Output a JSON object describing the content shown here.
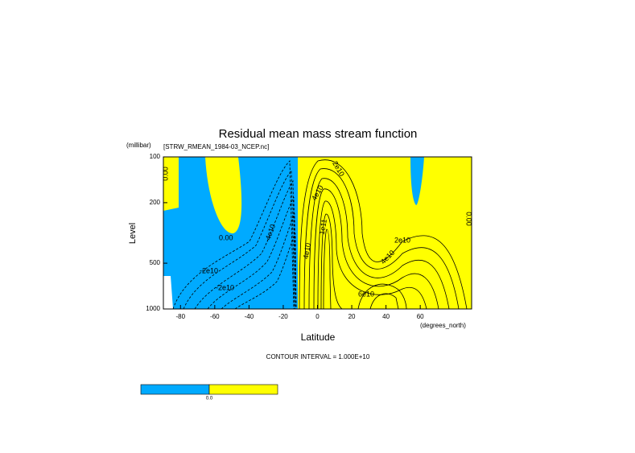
{
  "chart_data": {
    "type": "contour",
    "title": "Residual mean mass stream function",
    "subtitle": "[STRW_RMEAN_1984-03_NCEP.nc]",
    "xlabel": "Latitude",
    "xunit": "(degrees_north)",
    "ylabel": "Level",
    "yunit": "(millibar)",
    "xlim": [
      -90,
      90
    ],
    "xticks": [
      -80,
      -60,
      -40,
      -20,
      0,
      20,
      40,
      60
    ],
    "ylim": [
      100,
      1000
    ],
    "yticks": [
      100,
      200,
      500,
      1000
    ],
    "ylog": true,
    "yinverted": true,
    "colors": [
      "#00aaff",
      "#ffff00"
    ],
    "note": "CONTOUR INTERVAL = 1.000E+10",
    "contour_labels": [
      "0.00",
      "-2e10",
      "-2e10",
      "-4e10",
      "2e10",
      "4e10",
      "1e11",
      "4e10",
      "2e10",
      "4e10",
      "6e10",
      "0.00",
      "0.00"
    ],
    "colorbar_label": "0.0"
  }
}
